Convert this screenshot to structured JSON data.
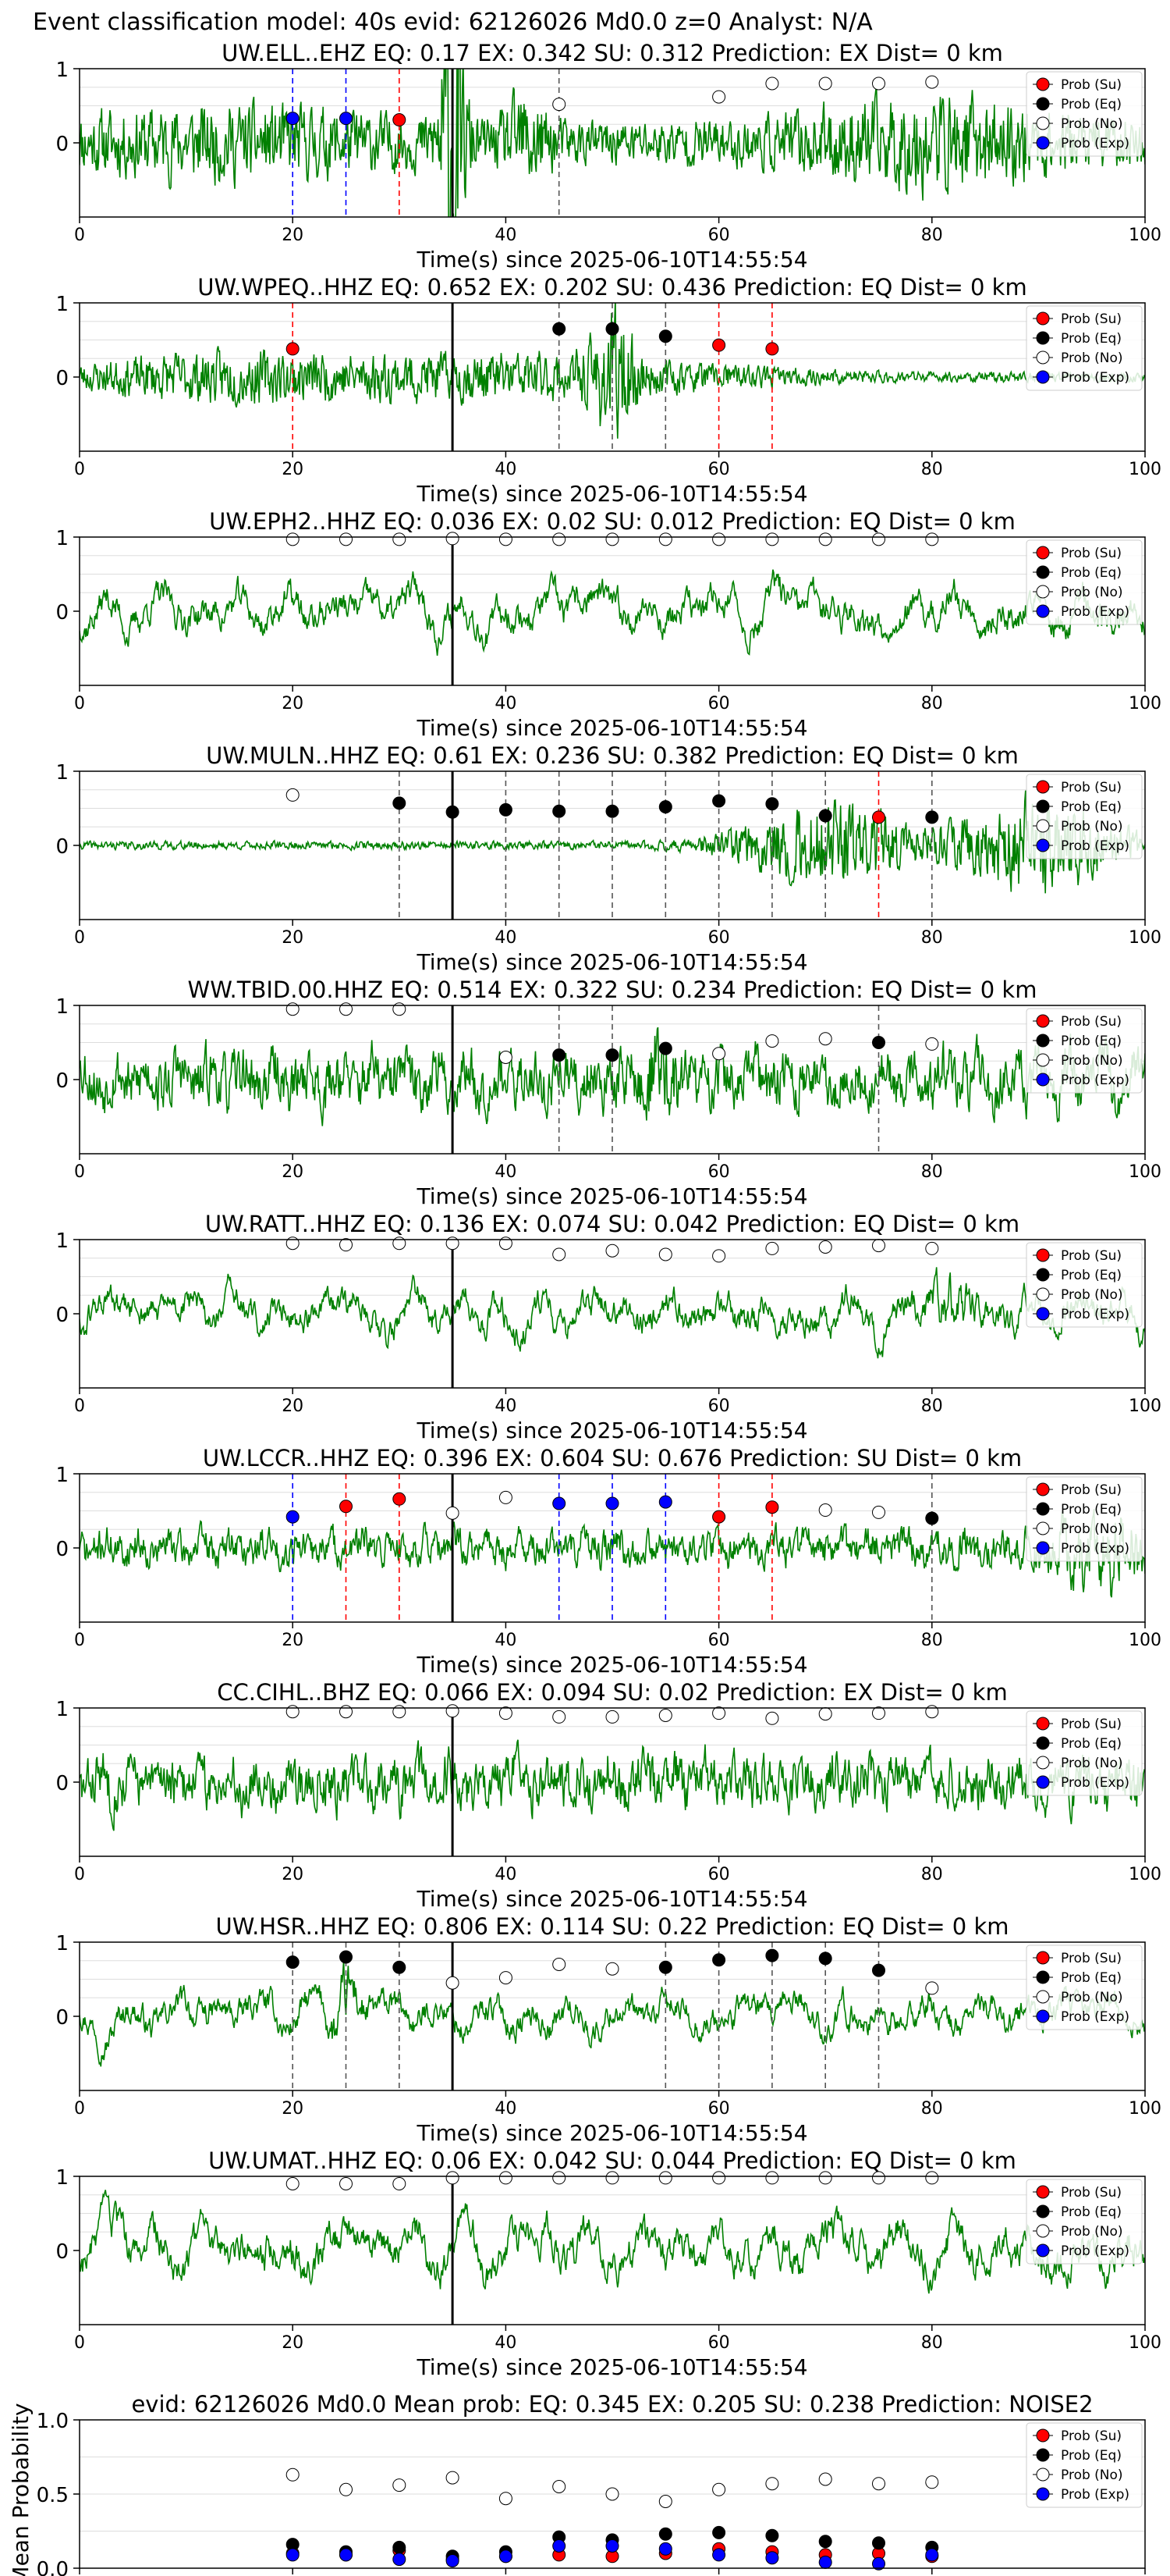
{
  "header": {
    "title": "Event classification model: 40s evid: 62126026 Md0.0 z=0 Analyst: N/A"
  },
  "colors": {
    "trace": "#008000",
    "su": "#ff0000",
    "eq": "#000000",
    "no": "#ffffff",
    "exp": "#0000ff",
    "grid": "#dddddd",
    "event_line": "#000000"
  },
  "legend_entries": [
    "Prob (Su)",
    "Prob (Eq)",
    "Prob (No)",
    "Prob (Exp)"
  ],
  "xaxis": {
    "label": "Time(s) since 2025-06-10T14:55:54",
    "lim": [
      0,
      100
    ],
    "ticks": [
      "0",
      "20",
      "40",
      "60",
      "80",
      "100"
    ],
    "event_time": 35
  },
  "chart_data": [
    {
      "type": "line",
      "title": "UW.ELL..EHZ   EQ: 0.17   EX: 0.342   SU: 0.312   Prediction: EX    Dist= 0 km",
      "ylim": [
        -1,
        1
      ],
      "yticks": [
        "1",
        "0"
      ],
      "waveform": {
        "style": "bursty",
        "amp": 0.28,
        "bursts": [
          [
            14,
            17,
            0.22
          ],
          [
            35,
            1.2,
            1.8
          ],
          [
            42,
            2,
            0.4
          ],
          [
            80,
            12,
            0.35
          ]
        ],
        "seed": 11
      },
      "time_windows": [
        20,
        25,
        30,
        35,
        40,
        45,
        50,
        55,
        60,
        65,
        70,
        75,
        80
      ],
      "points": [
        {
          "t": 20,
          "cls": "exp",
          "p": 0.33
        },
        {
          "t": 25,
          "cls": "exp",
          "p": 0.33
        },
        {
          "t": 30,
          "cls": "su",
          "p": 0.31
        },
        {
          "t": 45,
          "cls": "no",
          "p": 0.52
        },
        {
          "t": 60,
          "cls": "no",
          "p": 0.62
        },
        {
          "t": 65,
          "cls": "no",
          "p": 0.8
        },
        {
          "t": 70,
          "cls": "no",
          "p": 0.8
        },
        {
          "t": 75,
          "cls": "no",
          "p": 0.8
        },
        {
          "t": 80,
          "cls": "no",
          "p": 0.82
        }
      ],
      "vlines": [
        {
          "t": 20,
          "cls": "exp"
        },
        {
          "t": 25,
          "cls": "exp"
        },
        {
          "t": 30,
          "cls": "su"
        },
        {
          "t": 45,
          "cls": "eq"
        }
      ]
    },
    {
      "type": "line",
      "title": "UW.WPEQ..HHZ   EQ: 0.652  EX: 0.202  SU: 0.436   Prediction: EQ    Dist= 0 km",
      "ylim": [
        -1,
        1
      ],
      "yticks": [
        "1",
        "0"
      ],
      "waveform": {
        "style": "bursty",
        "amp": 0.06,
        "bursts": [
          [
            12,
            14,
            0.22
          ],
          [
            40,
            22,
            0.25
          ],
          [
            50,
            2,
            0.6
          ]
        ],
        "seed": 23
      },
      "points": [
        {
          "t": 20,
          "cls": "su",
          "p": 0.38
        },
        {
          "t": 45,
          "cls": "eq",
          "p": 0.65
        },
        {
          "t": 50,
          "cls": "eq",
          "p": 0.65
        },
        {
          "t": 55,
          "cls": "eq",
          "p": 0.55
        },
        {
          "t": 60,
          "cls": "su",
          "p": 0.43
        },
        {
          "t": 65,
          "cls": "su",
          "p": 0.38
        }
      ],
      "vlines": [
        {
          "t": 20,
          "cls": "su"
        },
        {
          "t": 45,
          "cls": "eq"
        },
        {
          "t": 50,
          "cls": "eq"
        },
        {
          "t": 55,
          "cls": "eq"
        },
        {
          "t": 60,
          "cls": "su"
        },
        {
          "t": 65,
          "cls": "su"
        }
      ]
    },
    {
      "type": "line",
      "title": "UW.EPH2..HHZ   EQ: 0.036  EX: 0.02  SU: 0.012   Prediction: EQ    Dist= 0 km",
      "ylim": [
        -1,
        1
      ],
      "yticks": [
        "1",
        "0"
      ],
      "waveform": {
        "style": "wavy",
        "amp": 0.45,
        "bursts": [],
        "seed": 37
      },
      "points": [
        {
          "t": 20,
          "cls": "no",
          "p": 0.97
        },
        {
          "t": 25,
          "cls": "no",
          "p": 0.97
        },
        {
          "t": 30,
          "cls": "no",
          "p": 0.97
        },
        {
          "t": 35,
          "cls": "no",
          "p": 0.98
        },
        {
          "t": 40,
          "cls": "no",
          "p": 0.97
        },
        {
          "t": 45,
          "cls": "no",
          "p": 0.97
        },
        {
          "t": 50,
          "cls": "no",
          "p": 0.97
        },
        {
          "t": 55,
          "cls": "no",
          "p": 0.97
        },
        {
          "t": 60,
          "cls": "no",
          "p": 0.97
        },
        {
          "t": 65,
          "cls": "no",
          "p": 0.97
        },
        {
          "t": 70,
          "cls": "no",
          "p": 0.97
        },
        {
          "t": 75,
          "cls": "no",
          "p": 0.97
        },
        {
          "t": 80,
          "cls": "no",
          "p": 0.97
        }
      ],
      "vlines": []
    },
    {
      "type": "line",
      "title": "UW.MULN..HHZ   EQ: 0.61  EX: 0.236  SU: 0.382   Prediction: EQ    Dist= 0 km",
      "ylim": [
        -1,
        1
      ],
      "yticks": [
        "1",
        "0"
      ],
      "waveform": {
        "style": "bursty",
        "amp": 0.05,
        "bursts": [
          [
            70,
            8,
            0.5
          ],
          [
            90,
            8,
            0.55
          ]
        ],
        "seed": 41
      },
      "points": [
        {
          "t": 20,
          "cls": "no",
          "p": 0.68
        },
        {
          "t": 30,
          "cls": "eq",
          "p": 0.57
        },
        {
          "t": 35,
          "cls": "eq",
          "p": 0.45
        },
        {
          "t": 40,
          "cls": "eq",
          "p": 0.48
        },
        {
          "t": 45,
          "cls": "eq",
          "p": 0.46
        },
        {
          "t": 50,
          "cls": "eq",
          "p": 0.46
        },
        {
          "t": 55,
          "cls": "eq",
          "p": 0.52
        },
        {
          "t": 60,
          "cls": "eq",
          "p": 0.6
        },
        {
          "t": 65,
          "cls": "eq",
          "p": 0.56
        },
        {
          "t": 70,
          "cls": "eq",
          "p": 0.4
        },
        {
          "t": 75,
          "cls": "su",
          "p": 0.38
        },
        {
          "t": 80,
          "cls": "eq",
          "p": 0.38
        }
      ],
      "vlines": [
        {
          "t": 30,
          "cls": "eq"
        },
        {
          "t": 40,
          "cls": "eq"
        },
        {
          "t": 45,
          "cls": "eq"
        },
        {
          "t": 50,
          "cls": "eq"
        },
        {
          "t": 55,
          "cls": "eq"
        },
        {
          "t": 60,
          "cls": "eq"
        },
        {
          "t": 65,
          "cls": "eq"
        },
        {
          "t": 70,
          "cls": "eq"
        },
        {
          "t": 75,
          "cls": "su"
        },
        {
          "t": 80,
          "cls": "eq"
        }
      ]
    },
    {
      "type": "line",
      "title": "WW.TBID.00.HHZ   EQ: 0.514  EX: 0.322  SU: 0.234   Prediction: EQ    Dist= 0 km",
      "ylim": [
        -1,
        1
      ],
      "yticks": [
        "1",
        "0"
      ],
      "waveform": {
        "style": "noisy",
        "amp": 0.5,
        "bursts": [
          [
            54,
            2,
            0.4
          ]
        ],
        "seed": 53
      },
      "points": [
        {
          "t": 20,
          "cls": "no",
          "p": 0.95
        },
        {
          "t": 25,
          "cls": "no",
          "p": 0.95
        },
        {
          "t": 30,
          "cls": "no",
          "p": 0.95
        },
        {
          "t": 40,
          "cls": "no",
          "p": 0.3
        },
        {
          "t": 45,
          "cls": "eq",
          "p": 0.33
        },
        {
          "t": 50,
          "cls": "eq",
          "p": 0.33
        },
        {
          "t": 55,
          "cls": "eq",
          "p": 0.42
        },
        {
          "t": 60,
          "cls": "no",
          "p": 0.35
        },
        {
          "t": 65,
          "cls": "no",
          "p": 0.52
        },
        {
          "t": 70,
          "cls": "no",
          "p": 0.55
        },
        {
          "t": 75,
          "cls": "eq",
          "p": 0.5
        },
        {
          "t": 80,
          "cls": "no",
          "p": 0.48
        }
      ],
      "vlines": [
        {
          "t": 45,
          "cls": "eq"
        },
        {
          "t": 50,
          "cls": "eq"
        },
        {
          "t": 75,
          "cls": "eq"
        }
      ]
    },
    {
      "type": "line",
      "title": "UW.RATT..HHZ   EQ: 0.136  EX: 0.074  SU: 0.042   Prediction: EQ    Dist= 0 km",
      "ylim": [
        -1,
        1
      ],
      "yticks": [
        "1",
        "0"
      ],
      "waveform": {
        "style": "wavy",
        "amp": 0.42,
        "bursts": [
          [
            82,
            2,
            0.4
          ]
        ],
        "seed": 61
      },
      "points": [
        {
          "t": 20,
          "cls": "no",
          "p": 0.95
        },
        {
          "t": 25,
          "cls": "no",
          "p": 0.93
        },
        {
          "t": 30,
          "cls": "no",
          "p": 0.95
        },
        {
          "t": 35,
          "cls": "no",
          "p": 0.95
        },
        {
          "t": 40,
          "cls": "no",
          "p": 0.95
        },
        {
          "t": 45,
          "cls": "no",
          "p": 0.8
        },
        {
          "t": 50,
          "cls": "no",
          "p": 0.85
        },
        {
          "t": 55,
          "cls": "no",
          "p": 0.8
        },
        {
          "t": 60,
          "cls": "no",
          "p": 0.78
        },
        {
          "t": 65,
          "cls": "no",
          "p": 0.88
        },
        {
          "t": 70,
          "cls": "no",
          "p": 0.9
        },
        {
          "t": 75,
          "cls": "no",
          "p": 0.92
        },
        {
          "t": 80,
          "cls": "no",
          "p": 0.88
        }
      ],
      "vlines": []
    },
    {
      "type": "line",
      "title": "UW.LCCR..HHZ   EQ: 0.396  EX: 0.604  SU: 0.676   Prediction: SU    Dist= 0 km",
      "ylim": [
        -1,
        1
      ],
      "yticks": [
        "1",
        "0"
      ],
      "waveform": {
        "style": "noisy",
        "amp": 0.3,
        "bursts": [
          [
            96,
            5,
            0.4
          ]
        ],
        "seed": 71
      },
      "points": [
        {
          "t": 20,
          "cls": "exp",
          "p": 0.42
        },
        {
          "t": 25,
          "cls": "su",
          "p": 0.56
        },
        {
          "t": 30,
          "cls": "su",
          "p": 0.66
        },
        {
          "t": 35,
          "cls": "no",
          "p": 0.47
        },
        {
          "t": 40,
          "cls": "no",
          "p": 0.68
        },
        {
          "t": 45,
          "cls": "exp",
          "p": 0.6
        },
        {
          "t": 50,
          "cls": "exp",
          "p": 0.6
        },
        {
          "t": 55,
          "cls": "exp",
          "p": 0.62
        },
        {
          "t": 60,
          "cls": "su",
          "p": 0.42
        },
        {
          "t": 65,
          "cls": "su",
          "p": 0.55
        },
        {
          "t": 70,
          "cls": "no",
          "p": 0.51
        },
        {
          "t": 75,
          "cls": "no",
          "p": 0.48
        },
        {
          "t": 80,
          "cls": "eq",
          "p": 0.4
        }
      ],
      "vlines": [
        {
          "t": 20,
          "cls": "exp"
        },
        {
          "t": 25,
          "cls": "su"
        },
        {
          "t": 30,
          "cls": "su"
        },
        {
          "t": 45,
          "cls": "exp"
        },
        {
          "t": 50,
          "cls": "exp"
        },
        {
          "t": 55,
          "cls": "exp"
        },
        {
          "t": 60,
          "cls": "su"
        },
        {
          "t": 65,
          "cls": "su"
        },
        {
          "t": 80,
          "cls": "eq"
        }
      ]
    },
    {
      "type": "line",
      "title": "CC.CIHL..BHZ   EQ: 0.066  EX: 0.094  SU: 0.02   Prediction: EX    Dist= 0 km",
      "ylim": [
        -1,
        1
      ],
      "yticks": [
        "1",
        "0"
      ],
      "waveform": {
        "style": "noisy",
        "amp": 0.45,
        "bursts": [],
        "seed": 83
      },
      "points": [
        {
          "t": 20,
          "cls": "no",
          "p": 0.95
        },
        {
          "t": 25,
          "cls": "no",
          "p": 0.95
        },
        {
          "t": 30,
          "cls": "no",
          "p": 0.95
        },
        {
          "t": 35,
          "cls": "no",
          "p": 0.96
        },
        {
          "t": 40,
          "cls": "no",
          "p": 0.93
        },
        {
          "t": 45,
          "cls": "no",
          "p": 0.88
        },
        {
          "t": 50,
          "cls": "no",
          "p": 0.88
        },
        {
          "t": 55,
          "cls": "no",
          "p": 0.9
        },
        {
          "t": 60,
          "cls": "no",
          "p": 0.93
        },
        {
          "t": 65,
          "cls": "no",
          "p": 0.86
        },
        {
          "t": 70,
          "cls": "no",
          "p": 0.92
        },
        {
          "t": 75,
          "cls": "no",
          "p": 0.93
        },
        {
          "t": 80,
          "cls": "no",
          "p": 0.95
        }
      ],
      "vlines": []
    },
    {
      "type": "line",
      "title": "UW.HSR..HHZ   EQ: 0.806  EX: 0.114  SU: 0.22   Prediction: EQ    Dist= 0 km",
      "ylim": [
        -1,
        1
      ],
      "yticks": [
        "1",
        "0"
      ],
      "waveform": {
        "style": "wavy",
        "amp": 0.4,
        "bursts": [
          [
            25,
            1.5,
            0.5
          ]
        ],
        "seed": 97
      },
      "points": [
        {
          "t": 20,
          "cls": "eq",
          "p": 0.73
        },
        {
          "t": 25,
          "cls": "eq",
          "p": 0.8
        },
        {
          "t": 30,
          "cls": "eq",
          "p": 0.66
        },
        {
          "t": 35,
          "cls": "no",
          "p": 0.45
        },
        {
          "t": 40,
          "cls": "no",
          "p": 0.52
        },
        {
          "t": 45,
          "cls": "no",
          "p": 0.7
        },
        {
          "t": 50,
          "cls": "no",
          "p": 0.64
        },
        {
          "t": 55,
          "cls": "eq",
          "p": 0.66
        },
        {
          "t": 60,
          "cls": "eq",
          "p": 0.76
        },
        {
          "t": 65,
          "cls": "eq",
          "p": 0.82
        },
        {
          "t": 70,
          "cls": "eq",
          "p": 0.78
        },
        {
          "t": 75,
          "cls": "eq",
          "p": 0.62
        },
        {
          "t": 80,
          "cls": "no",
          "p": 0.38
        }
      ],
      "vlines": [
        {
          "t": 20,
          "cls": "eq"
        },
        {
          "t": 25,
          "cls": "eq"
        },
        {
          "t": 30,
          "cls": "eq"
        },
        {
          "t": 55,
          "cls": "eq"
        },
        {
          "t": 60,
          "cls": "eq"
        },
        {
          "t": 65,
          "cls": "eq"
        },
        {
          "t": 70,
          "cls": "eq"
        },
        {
          "t": 75,
          "cls": "eq"
        }
      ]
    },
    {
      "type": "line",
      "title": "UW.UMAT..HHZ   EQ: 0.06  EX: 0.042  SU: 0.044   Prediction: EQ    Dist= 0 km",
      "ylim": [
        -1,
        1
      ],
      "yticks": [
        "1",
        "0"
      ],
      "waveform": {
        "style": "wavy",
        "amp": 0.5,
        "bursts": [],
        "seed": 103
      },
      "points": [
        {
          "t": 20,
          "cls": "no",
          "p": 0.9
        },
        {
          "t": 25,
          "cls": "no",
          "p": 0.9
        },
        {
          "t": 30,
          "cls": "no",
          "p": 0.9
        },
        {
          "t": 35,
          "cls": "no",
          "p": 0.98
        },
        {
          "t": 40,
          "cls": "no",
          "p": 0.98
        },
        {
          "t": 45,
          "cls": "no",
          "p": 0.98
        },
        {
          "t": 50,
          "cls": "no",
          "p": 0.98
        },
        {
          "t": 55,
          "cls": "no",
          "p": 0.98
        },
        {
          "t": 60,
          "cls": "no",
          "p": 0.98
        },
        {
          "t": 65,
          "cls": "no",
          "p": 0.98
        },
        {
          "t": 70,
          "cls": "no",
          "p": 0.98
        },
        {
          "t": 75,
          "cls": "no",
          "p": 0.98
        },
        {
          "t": 80,
          "cls": "no",
          "p": 0.98
        }
      ],
      "vlines": []
    },
    {
      "type": "scatter",
      "title": "evid: 62126026   Md0.0    Mean prob:    EQ: 0.345   EX: 0.205   SU: 0.238    Prediction: NOISE2",
      "ylabel": "Mean Probability",
      "ylim": [
        0,
        1
      ],
      "yticks": [
        "0.0",
        "0.5",
        "1.0"
      ],
      "x": [
        20,
        25,
        30,
        35,
        40,
        45,
        50,
        55,
        60,
        65,
        70,
        75,
        80
      ],
      "series": [
        {
          "name": "Prob (Su)",
          "cls": "su",
          "values": [
            0.1,
            0.09,
            0.12,
            0.06,
            0.08,
            0.09,
            0.08,
            0.1,
            0.13,
            0.11,
            0.09,
            0.1,
            0.08
          ]
        },
        {
          "name": "Prob (Eq)",
          "cls": "eq",
          "values": [
            0.16,
            0.11,
            0.14,
            0.08,
            0.11,
            0.21,
            0.19,
            0.23,
            0.24,
            0.22,
            0.18,
            0.17,
            0.14
          ]
        },
        {
          "name": "Prob (No)",
          "cls": "no",
          "values": [
            0.63,
            0.53,
            0.56,
            0.61,
            0.47,
            0.55,
            0.5,
            0.45,
            0.53,
            0.57,
            0.6,
            0.57,
            0.58
          ]
        },
        {
          "name": "Prob (Exp)",
          "cls": "exp",
          "values": [
            0.09,
            0.09,
            0.06,
            0.05,
            0.08,
            0.15,
            0.15,
            0.13,
            0.09,
            0.07,
            0.04,
            0.03,
            0.09
          ]
        }
      ]
    }
  ]
}
